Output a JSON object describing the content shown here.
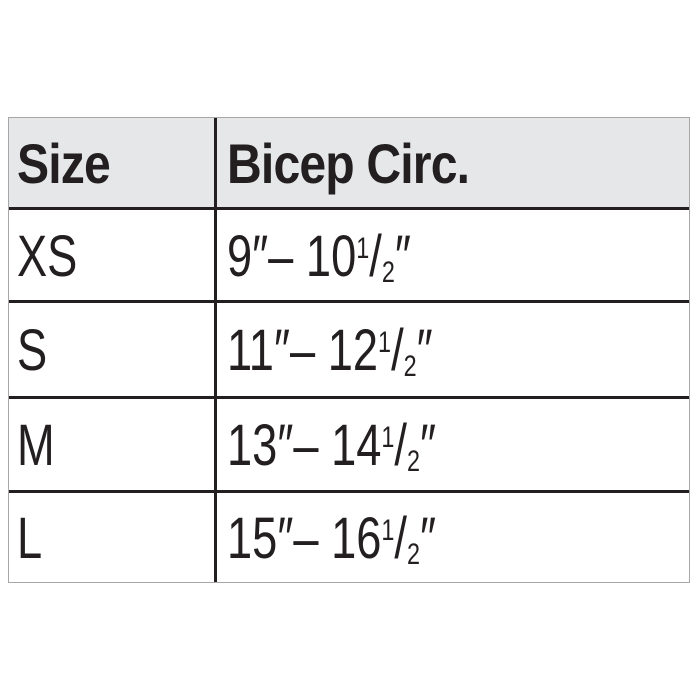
{
  "headers": [
    "Size",
    "Bicep Circ."
  ],
  "rows": [
    {
      "size": "XS",
      "low": "9″",
      "dash": "–",
      "high": "10",
      "num": "1",
      "den": "2",
      "unit": "″"
    },
    {
      "size": "S",
      "low": "11″",
      "dash": "–",
      "high": "12",
      "num": "1",
      "den": "2",
      "unit": "″"
    },
    {
      "size": "M",
      "low": "13″",
      "dash": "–",
      "high": "14",
      "num": "1",
      "den": "2",
      "unit": "″"
    },
    {
      "size": "L",
      "low": "15″",
      "dash": "–",
      "high": "16",
      "num": "1",
      "den": "2",
      "unit": "″"
    }
  ],
  "slash": "/",
  "colors": {
    "header_bg": "#e6e7e9",
    "text": "#231f20",
    "rule": "#231f20",
    "outer_border": "#a7a7a7"
  }
}
